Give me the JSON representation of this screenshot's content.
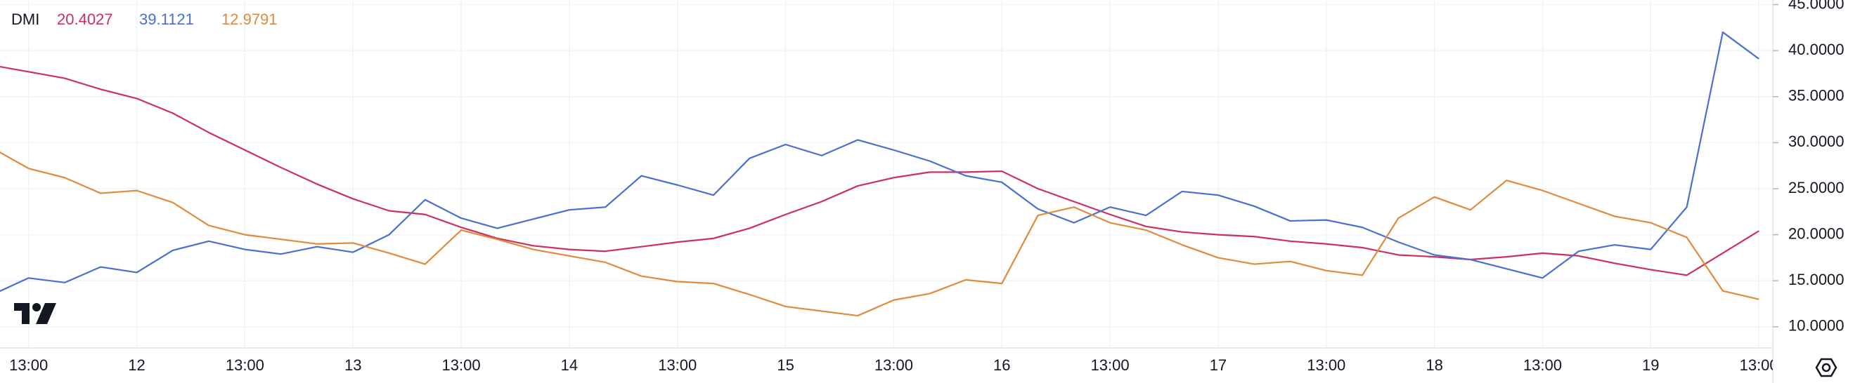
{
  "chart_data": {
    "type": "line",
    "title": "DMI",
    "categories": [
      null,
      "13:00",
      null,
      null,
      "12",
      null,
      null,
      "13:00",
      null,
      null,
      "13",
      null,
      null,
      "13:00",
      null,
      null,
      "14",
      null,
      null,
      "13:00",
      null,
      null,
      "15",
      null,
      null,
      "13:00",
      null,
      null,
      "16",
      null,
      null,
      "13:00",
      null,
      null,
      "17",
      null,
      null,
      "13:00",
      null,
      null,
      "18",
      null,
      null,
      "13:00",
      null,
      null,
      "19",
      null,
      null,
      "13:00"
    ],
    "series": [
      {
        "color": "#cc2f60",
        "values": [
          38.4,
          37.7,
          37,
          35.8,
          34.8,
          33.2,
          31.1,
          29.2,
          27.3,
          25.5,
          23.9,
          22.6,
          22.2,
          20.8,
          19.6,
          18.8,
          18.4,
          18.2,
          18.7,
          19.2,
          19.6,
          20.7,
          22.2,
          23.6,
          25.3,
          26.2,
          26.8,
          26.8,
          26.9,
          25,
          23.6,
          22.2,
          20.9,
          20.3,
          20,
          19.8,
          19.3,
          19,
          18.6,
          17.8,
          17.6,
          17.3,
          17.6,
          18,
          17.7,
          16.9,
          16.2,
          15.6,
          18,
          20.4027
        ]
      },
      {
        "color": "#4a6fd4",
        "values": [
          13.5,
          15.3,
          14.8,
          16.5,
          15.9,
          18.3,
          19.3,
          18.4,
          17.9,
          18.7,
          18.1,
          20,
          23.8,
          21.8,
          20.7,
          21.7,
          22.7,
          23,
          26.4,
          25.4,
          24.3,
          28.3,
          29.8,
          28.6,
          30.3,
          29.2,
          28,
          26.4,
          25.7,
          22.8,
          21.3,
          23,
          22.1,
          24.7,
          24.3,
          23.1,
          21.5,
          21.6,
          20.8,
          19.2,
          17.8,
          17.3,
          16.3,
          15.3,
          18.2,
          18.9,
          18.4,
          23,
          42,
          39.1121
        ]
      },
      {
        "color": "#e08a3c",
        "values": [
          29.4,
          27.2,
          26.2,
          24.5,
          24.8,
          23.5,
          21,
          20,
          19.5,
          19,
          19.1,
          18,
          16.8,
          20.5,
          19.5,
          18.4,
          17.7,
          17,
          15.5,
          14.9,
          14.7,
          13.5,
          12.2,
          11.7,
          11.2,
          12.9,
          13.6,
          15.1,
          14.7,
          22.1,
          23,
          21.3,
          20.5,
          18.9,
          17.5,
          16.8,
          17.1,
          16.1,
          15.6,
          21.8,
          24.1,
          22.7,
          25.9,
          24.8,
          23.4,
          22,
          21.3,
          19.7,
          13.9,
          12.9791
        ]
      }
    ],
    "ylim": [
      7.7,
      45.5
    ],
    "yticks": [
      {
        "value": 10,
        "label": "10.0000"
      },
      {
        "value": 15,
        "label": "15.0000"
      },
      {
        "value": 20,
        "label": "20.0000"
      },
      {
        "value": 25,
        "label": "25.0000"
      },
      {
        "value": 30,
        "label": "30.0000"
      },
      {
        "value": 35,
        "label": "35.0000"
      },
      {
        "value": 40,
        "label": "40.0000"
      },
      {
        "value": 45,
        "label": "45.0000"
      }
    ],
    "grid": true
  }
}
